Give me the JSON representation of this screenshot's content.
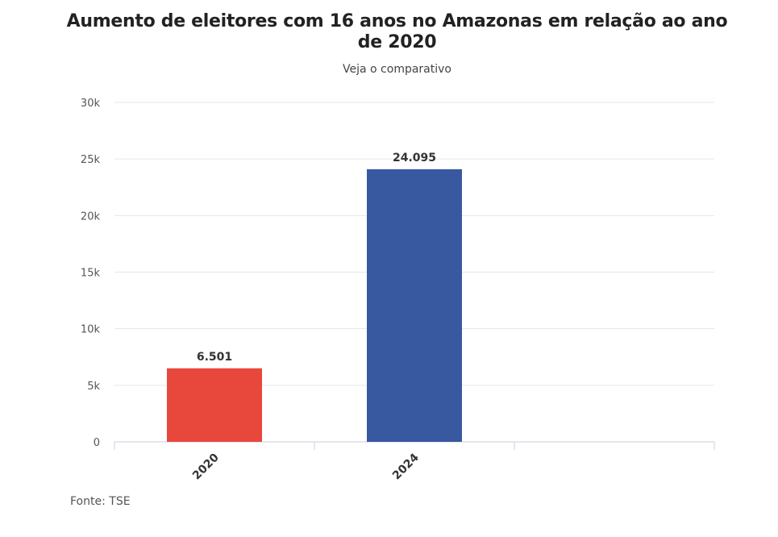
{
  "chart_data": {
    "type": "bar",
    "title": "Aumento de eleitores com 16 anos no Amazonas em relação ao ano de 2020",
    "subtitle": "Veja o comparativo",
    "categories": [
      "2020",
      "2024"
    ],
    "values": [
      6501,
      24095
    ],
    "value_labels": [
      "6.501",
      "24.095"
    ],
    "colors": [
      "#e8473c",
      "#3858a0"
    ],
    "ylim": [
      0,
      30000
    ],
    "yticks": [
      0,
      5000,
      10000,
      15000,
      20000,
      25000,
      30000
    ],
    "ytick_labels": [
      "0",
      "5k",
      "10k",
      "15k",
      "20k",
      "25k",
      "30k"
    ],
    "grid": true,
    "xlabel": "",
    "ylabel": ""
  },
  "source": "Fonte: TSE"
}
